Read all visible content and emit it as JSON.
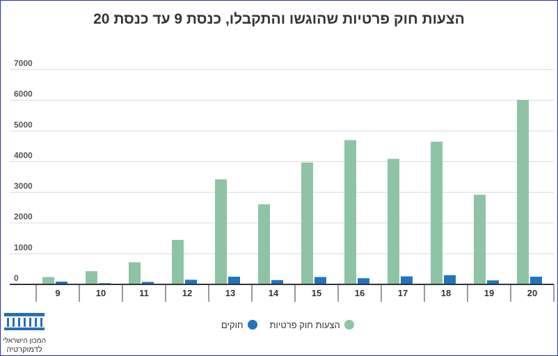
{
  "page": {
    "title": "הצעות חוק פרטיות שהוגשו והתקבלו, כנסת 9 עד כנסת 20"
  },
  "logo": {
    "line1": "המכון הישראלי",
    "line2": "לדמוקרטיה"
  },
  "legend": {
    "private_bills_label": "הצעות חוק פרטיות",
    "laws_label": "חוקים"
  },
  "colors": {
    "private_bills": "#8fc3a5",
    "laws": "#2373bd",
    "grid": "#d9d9d9",
    "axis": "#333333",
    "logo": "#2a6fb0"
  },
  "chart_data": {
    "type": "bar",
    "title": "הצעות חוק פרטיות שהוגשו והתקבלו, כנסת 9 עד כנסת 20",
    "xlabel": "",
    "ylabel": "",
    "categories": [
      "9",
      "10",
      "11",
      "12",
      "13",
      "14",
      "15",
      "16",
      "17",
      "18",
      "19",
      "20"
    ],
    "series": [
      {
        "name": "הצעות חוק פרטיות",
        "values": [
          240,
          430,
          720,
          1450,
          3420,
          2610,
          3970,
          4700,
          4090,
          4650,
          2920,
          6010
        ]
      },
      {
        "name": "חוקים",
        "values": [
          90,
          40,
          80,
          150,
          250,
          140,
          240,
          200,
          260,
          300,
          130,
          250
        ]
      }
    ],
    "yticks": [
      0,
      1000,
      2000,
      3000,
      4000,
      5000,
      6000,
      7000
    ],
    "ylim": [
      0,
      7000
    ],
    "grid": true,
    "legend_position": "bottom"
  }
}
